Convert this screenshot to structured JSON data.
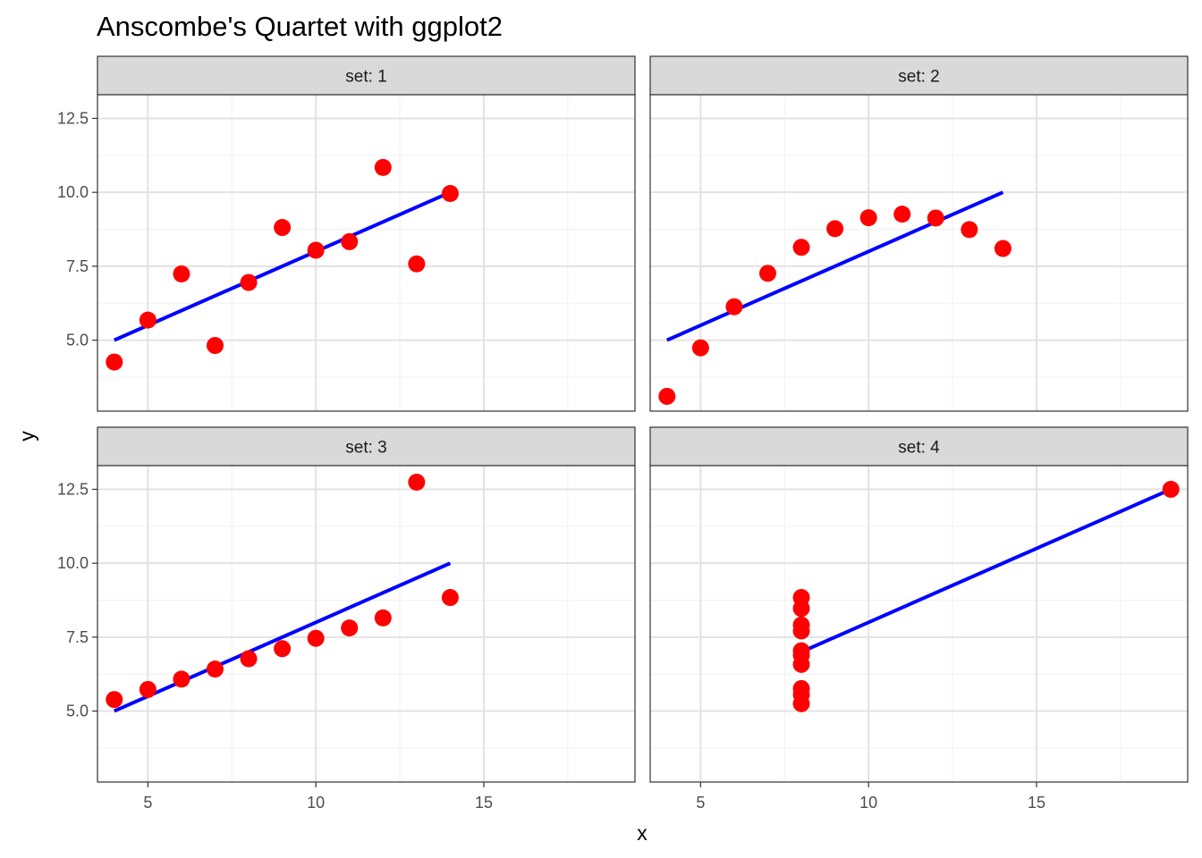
{
  "chart_data": {
    "type": "scatter",
    "title": "Anscombe's Quartet with ggplot2",
    "xlabel": "x",
    "ylabel": "y",
    "xlim": [
      3.5,
      19.5
    ],
    "ylim": [
      2.6,
      13.3
    ],
    "x_ticks": [
      5,
      10,
      15
    ],
    "y_ticks": [
      5.0,
      7.5,
      10.0,
      12.5
    ],
    "x_tick_labels": [
      "5",
      "10",
      "15"
    ],
    "y_tick_labels": [
      "5.0",
      "7.5",
      "10.0",
      "12.5"
    ],
    "grid": true,
    "legend": "none",
    "point_color": "#ff0000",
    "line_color": "#0000ff",
    "panels": [
      {
        "strip": "set: 1",
        "x": [
          10,
          8,
          13,
          9,
          11,
          14,
          6,
          4,
          12,
          7,
          5
        ],
        "y": [
          8.04,
          6.95,
          7.58,
          8.81,
          8.33,
          9.96,
          7.24,
          4.26,
          10.84,
          4.82,
          5.68
        ],
        "fit": {
          "x": [
            4,
            14
          ],
          "y": [
            5.0,
            10.0
          ]
        }
      },
      {
        "strip": "set: 2",
        "x": [
          10,
          8,
          13,
          9,
          11,
          14,
          6,
          4,
          12,
          7,
          5
        ],
        "y": [
          9.14,
          8.14,
          8.74,
          8.77,
          9.26,
          8.1,
          6.13,
          3.1,
          9.13,
          7.26,
          4.74
        ],
        "fit": {
          "x": [
            4,
            14
          ],
          "y": [
            5.0,
            10.0
          ]
        }
      },
      {
        "strip": "set: 3",
        "x": [
          10,
          8,
          13,
          9,
          11,
          14,
          6,
          4,
          12,
          7,
          5
        ],
        "y": [
          7.46,
          6.77,
          12.74,
          7.11,
          7.81,
          8.84,
          6.08,
          5.39,
          8.15,
          6.42,
          5.73
        ],
        "fit": {
          "x": [
            4,
            14
          ],
          "y": [
            5.0,
            10.0
          ]
        }
      },
      {
        "strip": "set: 4",
        "x": [
          8,
          8,
          8,
          8,
          8,
          8,
          8,
          19,
          8,
          8,
          8
        ],
        "y": [
          6.58,
          5.76,
          7.71,
          8.84,
          8.47,
          7.04,
          5.25,
          12.5,
          5.56,
          7.91,
          6.89
        ],
        "fit": {
          "x": [
            8,
            19
          ],
          "y": [
            7.0,
            12.5
          ]
        }
      }
    ]
  }
}
